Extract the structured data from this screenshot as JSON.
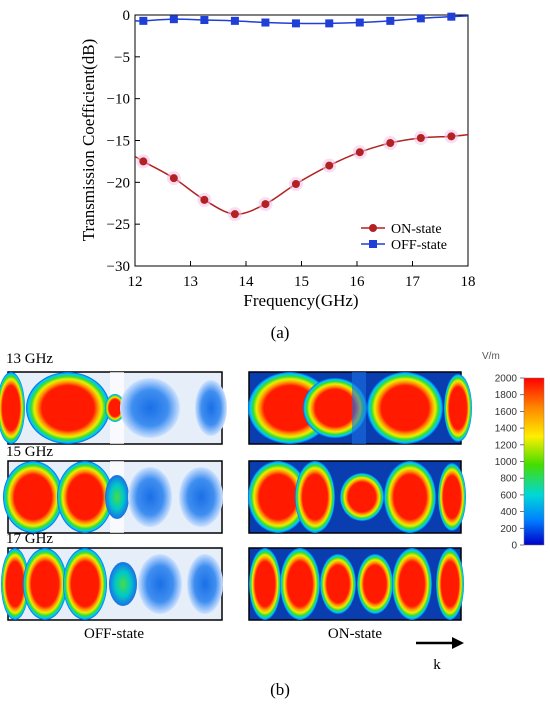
{
  "chart_data": {
    "type": "line",
    "xlabel": "Frequency(GHz)",
    "ylabel": "Transmission Coefficient(dB)",
    "xlim": [
      12,
      18
    ],
    "ylim": [
      -30,
      0
    ],
    "xticks": [
      12,
      13,
      14,
      15,
      16,
      17,
      18
    ],
    "yticks": [
      0,
      -5,
      -10,
      -15,
      -20,
      -25,
      -30
    ],
    "legend_position": "bottom-right",
    "grid": false,
    "series": [
      {
        "name": "ON-state",
        "color": "#b22222",
        "marker": "circle",
        "x": [
          12.15,
          12.7,
          13.25,
          13.8,
          14.35,
          14.9,
          15.5,
          16.05,
          16.6,
          17.15,
          17.7
        ],
        "y": [
          -17.5,
          -19.5,
          -22.1,
          -23.8,
          -22.6,
          -20.2,
          -18.0,
          -16.4,
          -15.3,
          -14.7,
          -14.5
        ],
        "curve_x": [
          12.0,
          12.15,
          12.7,
          13.25,
          13.8,
          14.35,
          14.9,
          15.5,
          16.05,
          16.6,
          17.15,
          17.7,
          18.0
        ],
        "curve_y": [
          -16.9,
          -17.5,
          -19.5,
          -22.1,
          -23.8,
          -22.6,
          -20.2,
          -18.0,
          -16.4,
          -15.3,
          -14.7,
          -14.5,
          -14.3
        ]
      },
      {
        "name": "OFF-state",
        "color": "#1f3fd6",
        "marker": "square",
        "x": [
          12.15,
          12.7,
          13.25,
          13.8,
          14.35,
          14.9,
          15.5,
          16.05,
          16.6,
          17.15,
          17.7
        ],
        "y": [
          -0.7,
          -0.5,
          -0.6,
          -0.7,
          -0.9,
          -1.0,
          -1.0,
          -0.9,
          -0.7,
          -0.4,
          -0.2
        ],
        "curve_x": [
          12.0,
          12.15,
          12.7,
          13.25,
          13.8,
          14.35,
          14.9,
          15.5,
          16.05,
          16.6,
          17.15,
          17.7,
          18.0
        ],
        "curve_y": [
          -0.7,
          -0.7,
          -0.5,
          -0.6,
          -0.7,
          -0.9,
          -1.0,
          -1.0,
          -0.9,
          -0.7,
          -0.4,
          -0.2,
          -0.1
        ]
      }
    ]
  },
  "captions": {
    "a": "(a)",
    "b": "(b)"
  },
  "field_maps": {
    "rows": [
      "13 GHz",
      "15 GHz",
      "17 GHz"
    ],
    "columns": [
      "OFF-state",
      "ON-state"
    ],
    "wave_label": "k"
  },
  "colorbar": {
    "unit": "V/m",
    "ticks": [
      "2000",
      "1800",
      "1600",
      "1400",
      "1200",
      "1000",
      "800",
      "600",
      "400",
      "200",
      "0"
    ]
  }
}
